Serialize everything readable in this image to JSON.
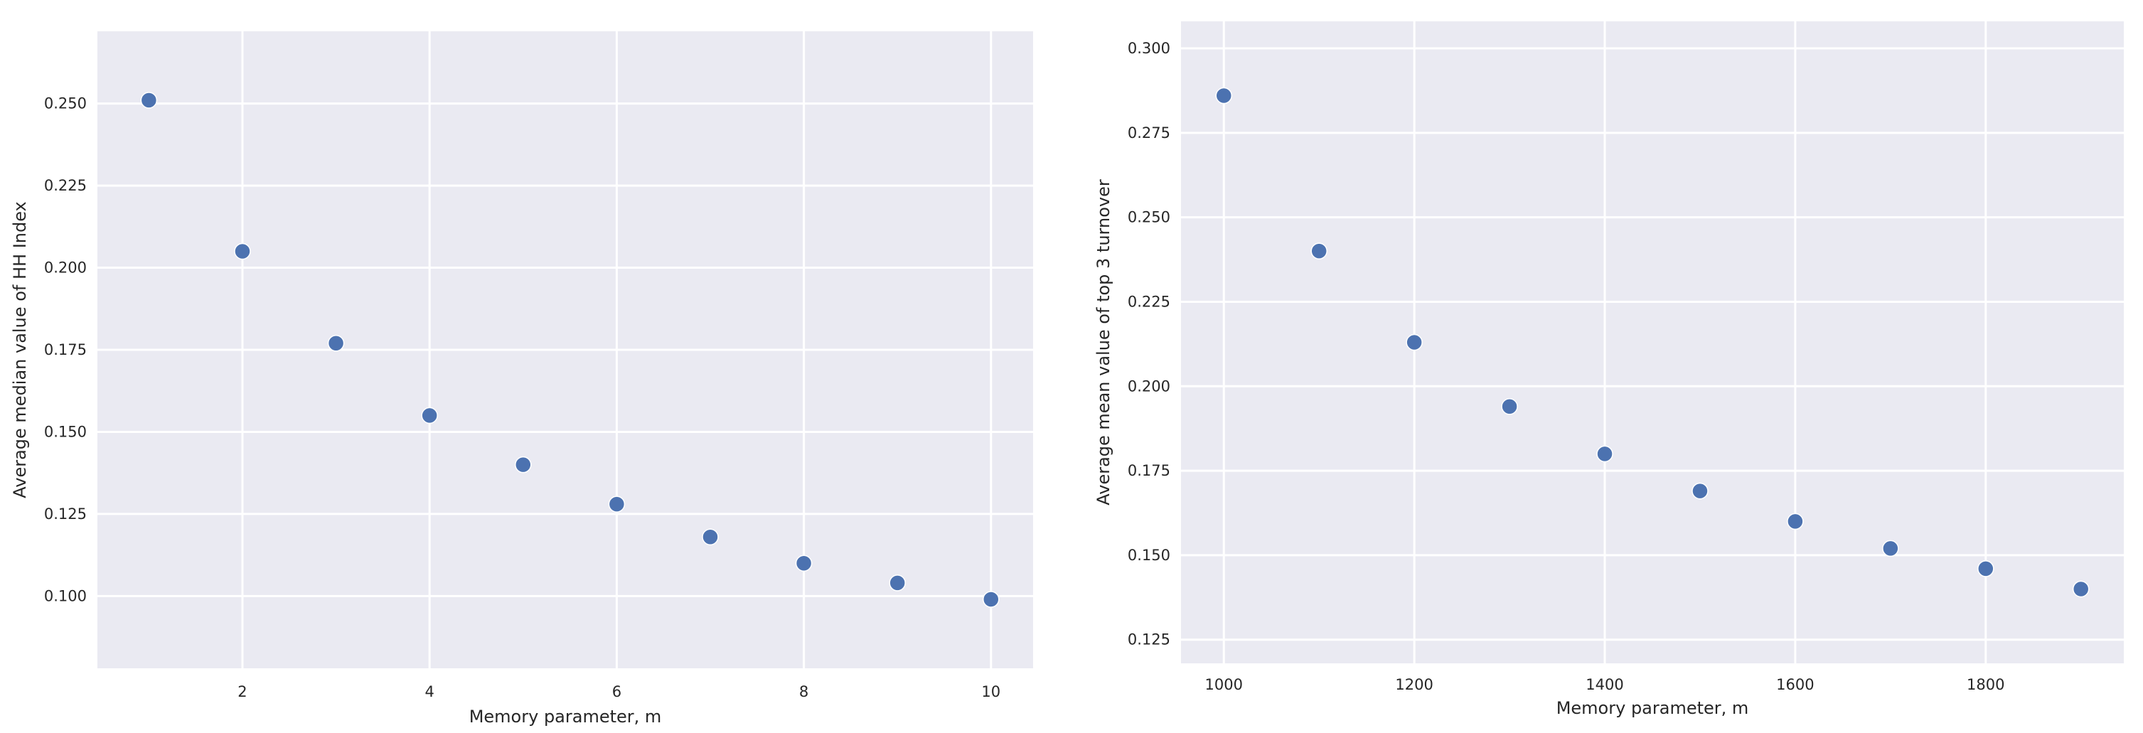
{
  "colors": {
    "background": "#ffffff",
    "panel": "#eaeaf2",
    "grid": "#ffffff",
    "marker": "#4c72b0",
    "text": "#262626"
  },
  "chart_data": [
    {
      "type": "scatter",
      "title": "",
      "xlabel": "Memory parameter, m",
      "ylabel": "Average median value of HH Index",
      "xlim": [
        0.45,
        10.45
      ],
      "ylim": [
        0.078,
        0.272
      ],
      "xticks": [
        2,
        4,
        6,
        8,
        10
      ],
      "xtick_labels": [
        "2",
        "4",
        "6",
        "8",
        "10"
      ],
      "yticks": [
        0.1,
        0.125,
        0.15,
        0.175,
        0.2,
        0.225,
        0.25
      ],
      "ytick_labels": [
        "0.100",
        "0.125",
        "0.150",
        "0.175",
        "0.200",
        "0.225",
        "0.250"
      ],
      "grid": true,
      "x": [
        1,
        2,
        3,
        4,
        5,
        6,
        7,
        8,
        9,
        10
      ],
      "y": [
        0.251,
        0.205,
        0.177,
        0.155,
        0.14,
        0.128,
        0.118,
        0.11,
        0.104,
        0.099
      ]
    },
    {
      "type": "scatter",
      "title": "",
      "xlabel": "Memory parameter, m",
      "ylabel": "Average mean value of top 3 turnover",
      "xlim": [
        955,
        1945
      ],
      "ylim": [
        0.118,
        0.308
      ],
      "xticks": [
        1000,
        1200,
        1400,
        1600,
        1800
      ],
      "xtick_labels": [
        "1000",
        "1200",
        "1400",
        "1600",
        "1800"
      ],
      "yticks": [
        0.125,
        0.15,
        0.175,
        0.2,
        0.225,
        0.25,
        0.275,
        0.3
      ],
      "ytick_labels": [
        "0.125",
        "0.150",
        "0.175",
        "0.200",
        "0.225",
        "0.250",
        "0.275",
        "0.300"
      ],
      "grid": true,
      "x": [
        1000,
        1100,
        1200,
        1300,
        1400,
        1500,
        1600,
        1700,
        1800,
        1900
      ],
      "y": [
        0.286,
        0.24,
        0.213,
        0.194,
        0.18,
        0.169,
        0.16,
        0.152,
        0.146,
        0.14
      ]
    }
  ]
}
